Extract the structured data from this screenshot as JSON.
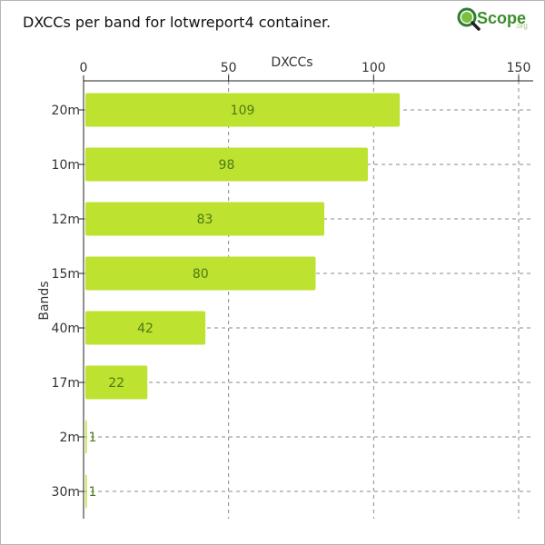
{
  "chart_data": {
    "type": "bar",
    "orientation": "horizontal",
    "title": "DXCCs per band for lotwreport4 container.",
    "xlabel": "DXCCs",
    "ylabel": "Bands",
    "categories": [
      "20m",
      "10m",
      "12m",
      "15m",
      "40m",
      "17m",
      "2m",
      "30m"
    ],
    "values": [
      109,
      98,
      83,
      80,
      42,
      22,
      1,
      1
    ],
    "xlim": [
      0,
      150
    ],
    "xticks": [
      0,
      50,
      100,
      150
    ],
    "x_axis_position": "top",
    "grid": "dashed",
    "bar_color": "#bde22f",
    "label_color": "#4d7a16"
  },
  "logo": {
    "text": "Scope",
    "suffix": ".org"
  }
}
